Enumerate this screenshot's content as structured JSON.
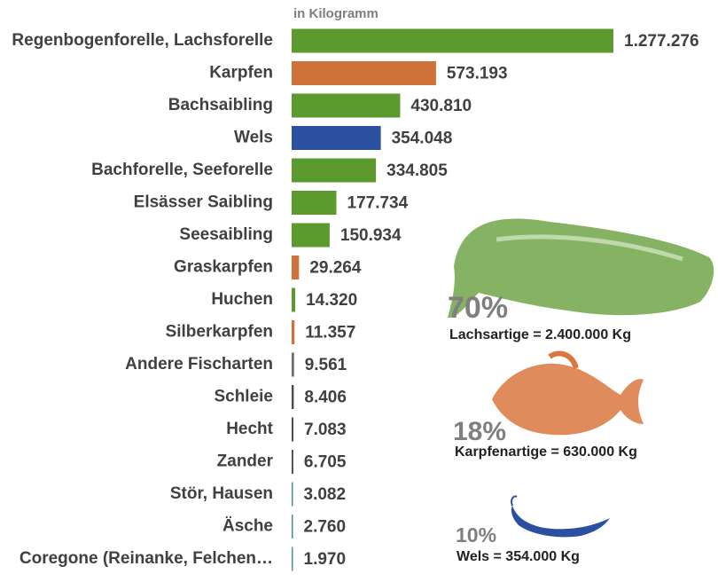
{
  "chart_data": {
    "type": "hbar",
    "subtitle": "in Kilogramm",
    "categories": [
      "Regenbogenforelle, Lachsforelle",
      "Karpfen",
      "Bachsaibling",
      "Wels",
      "Bachforelle, Seeforelle",
      "Elsässer Saibling",
      "Seesaibling",
      "Graskarpfen",
      "Huchen",
      "Silberkarpfen",
      "Andere Fischarten",
      "Schleie",
      "Hecht",
      "Zander",
      "Stör, Hausen",
      "Äsche",
      "Coregone (Reinanke, Felchen…"
    ],
    "values": [
      1277276,
      573193,
      430810,
      354048,
      334805,
      177734,
      150934,
      29264,
      14320,
      11357,
      9561,
      8406,
      7083,
      6705,
      3082,
      2760,
      1970
    ],
    "value_labels": [
      "1.277.276",
      "573.193",
      "430.810",
      "354.048",
      "334.805",
      "177.734",
      "150.934",
      "29.264",
      "14.320",
      "11.357",
      "9.561",
      "8.406",
      "7.083",
      "6.705",
      "3.082",
      "2.760",
      "1.970"
    ],
    "colors": [
      "#5c9a2f",
      "#cf723a",
      "#5c9a2f",
      "#2b50a0",
      "#5c9a2f",
      "#5c9a2f",
      "#5c9a2f",
      "#cf723a",
      "#5c9a2f",
      "#cf723a",
      "#6b6b6b",
      "#4a4a55",
      "#4a4a55",
      "#4a4a55",
      "#4f8f8f",
      "#4f8f8f",
      "#4f8f8f"
    ],
    "annotations": [
      "70%",
      "Lachsartige = 2.400.000 Kg",
      "18%",
      "Karpfenartige = 630.000 Kg",
      "10%",
      "Wels = 354.000 Kg"
    ]
  }
}
